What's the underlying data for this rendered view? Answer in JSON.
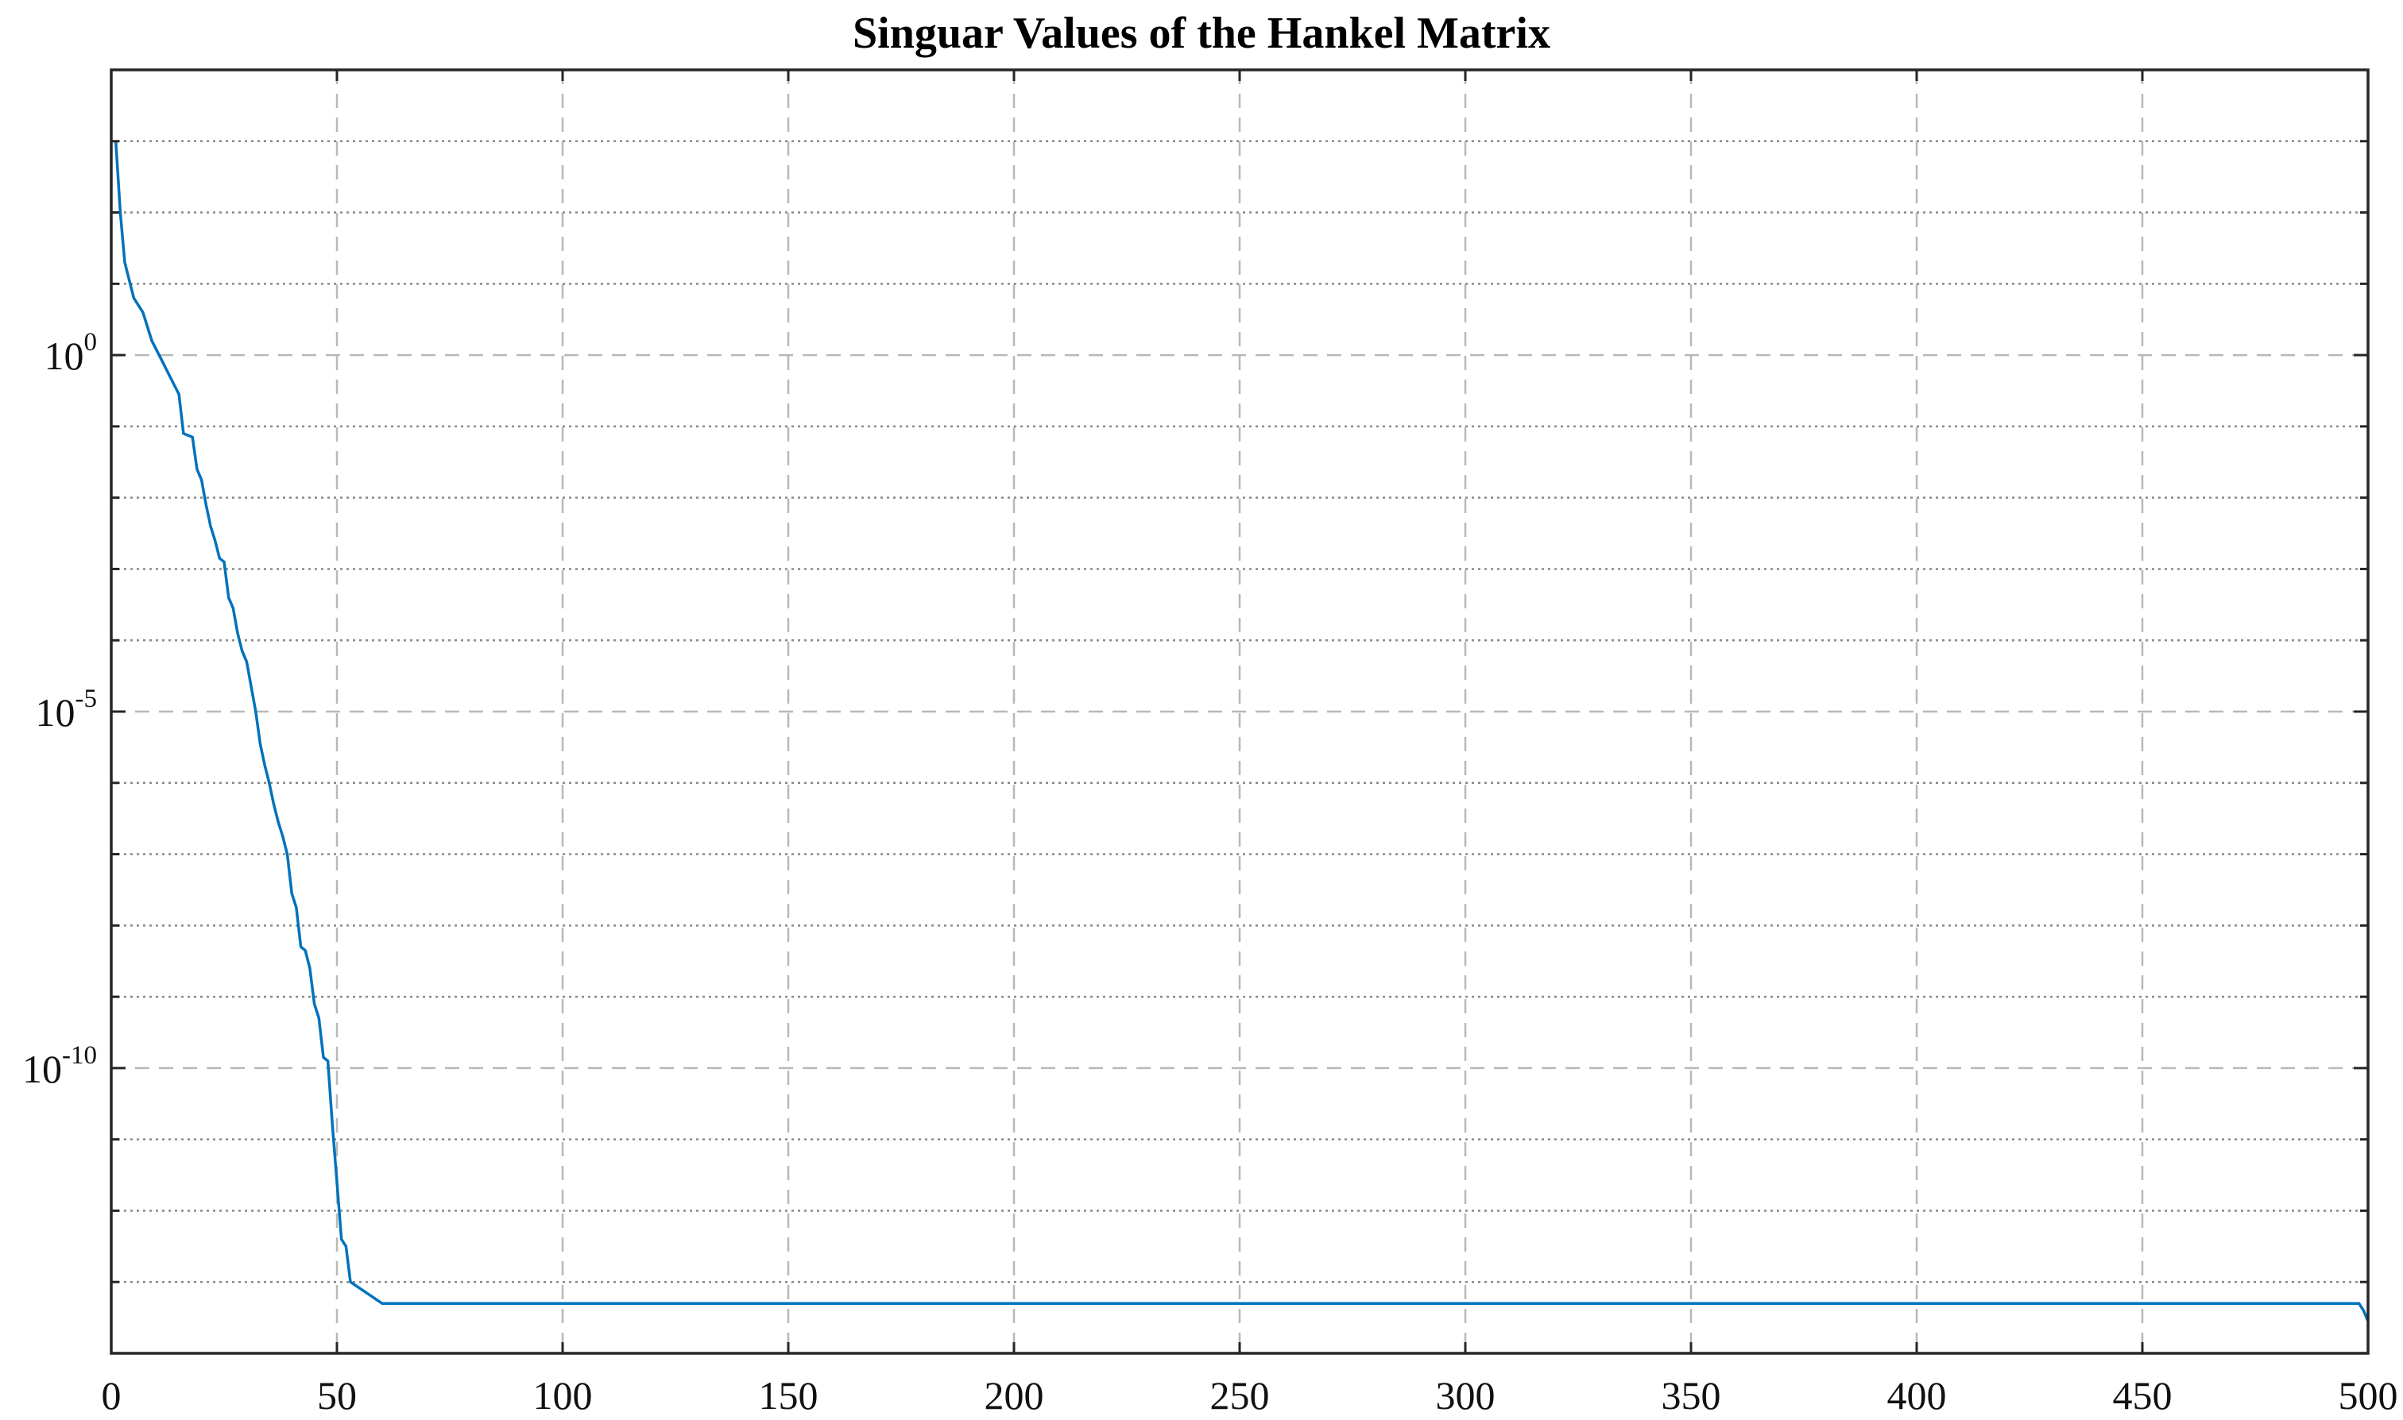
{
  "chart_data": {
    "type": "line",
    "title": "Singuar Values of the Hankel Matrix",
    "xlabel": "",
    "ylabel": "",
    "yscale": "log",
    "xlim": [
      0,
      500
    ],
    "ylim_log10": [
      -14,
      4
    ],
    "grid": true,
    "x_ticks": [
      0,
      50,
      100,
      150,
      200,
      250,
      300,
      350,
      400,
      450,
      500
    ],
    "x_tick_labels": [
      "0",
      "50",
      "100",
      "150",
      "200",
      "250",
      "300",
      "350",
      "400",
      "450",
      "500"
    ],
    "y_major_ticks_log10": [
      0,
      -5,
      -10
    ],
    "y_major_tick_labels": [
      {
        "base": "10",
        "exp": "0"
      },
      {
        "base": "10",
        "exp": "-5"
      },
      {
        "base": "10",
        "exp": "-10"
      }
    ],
    "y_minor_ticks_log10": [
      3,
      2,
      1,
      -1,
      -2,
      -3,
      -4,
      -6,
      -7,
      -8,
      -9,
      -11,
      -12,
      -13
    ],
    "series": [
      {
        "name": "singular values",
        "color": "#0072BD",
        "x": [
          1,
          2,
          3,
          5,
          7,
          9,
          11,
          13,
          15,
          16,
          18,
          19,
          20,
          21,
          22,
          23,
          24,
          25,
          26,
          27,
          28,
          29,
          30,
          31,
          32,
          33,
          34,
          35,
          36,
          37,
          38,
          39,
          40,
          41,
          42,
          43,
          44,
          45,
          46,
          47,
          48,
          49,
          50,
          51,
          52,
          53,
          60,
          100,
          200,
          300,
          400,
          498,
          499,
          500
        ],
        "log10_values": [
          3.0,
          2.0,
          1.3,
          0.8,
          0.6,
          0.2,
          -0.05,
          -0.3,
          -0.55,
          -1.1,
          -1.15,
          -1.6,
          -1.75,
          -2.1,
          -2.4,
          -2.6,
          -2.85,
          -2.9,
          -3.4,
          -3.55,
          -3.9,
          -4.15,
          -4.3,
          -4.65,
          -5.0,
          -5.45,
          -5.75,
          -6.0,
          -6.3,
          -6.55,
          -6.75,
          -7.0,
          -7.55,
          -7.75,
          -8.3,
          -8.35,
          -8.6,
          -9.1,
          -9.3,
          -9.85,
          -9.9,
          -10.8,
          -11.6,
          -12.4,
          -12.5,
          -13.0,
          -13.3,
          -13.3,
          -13.3,
          -13.3,
          -13.3,
          -13.3,
          -13.4,
          -13.55
        ]
      }
    ]
  }
}
